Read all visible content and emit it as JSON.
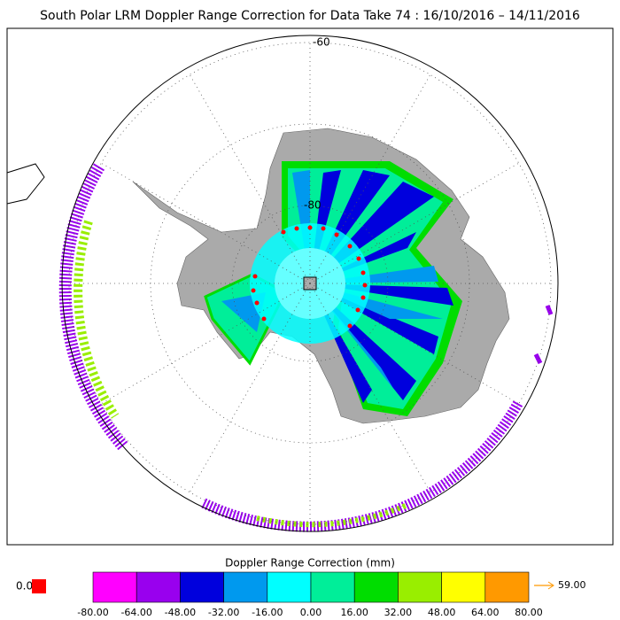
{
  "title": "South Polar LRM Doppler Range Correction for Data Take 74 : 16/10/2016 – 14/11/2016",
  "lat_labels": [
    "-60",
    "-80"
  ],
  "colorbar": {
    "title": "Doppler Range Correction (mm)",
    "ticks": [
      "-80.00",
      "-64.00",
      "-48.00",
      "-32.00",
      "-16.00",
      "0.00",
      "16.00",
      "32.00",
      "48.00",
      "64.00",
      "80.00"
    ],
    "colors": [
      "#ff00ff",
      "#9900ee",
      "#0000dd",
      "#0099ee",
      "#00ffff",
      "#00ee99",
      "#00dd00",
      "#99ee00",
      "#ffff00",
      "#ff9900"
    ]
  },
  "legend": {
    "zero_label": "0.0",
    "zero_color": "#ff0000",
    "over_label": "59.00",
    "over_color": "#ff9900"
  }
}
